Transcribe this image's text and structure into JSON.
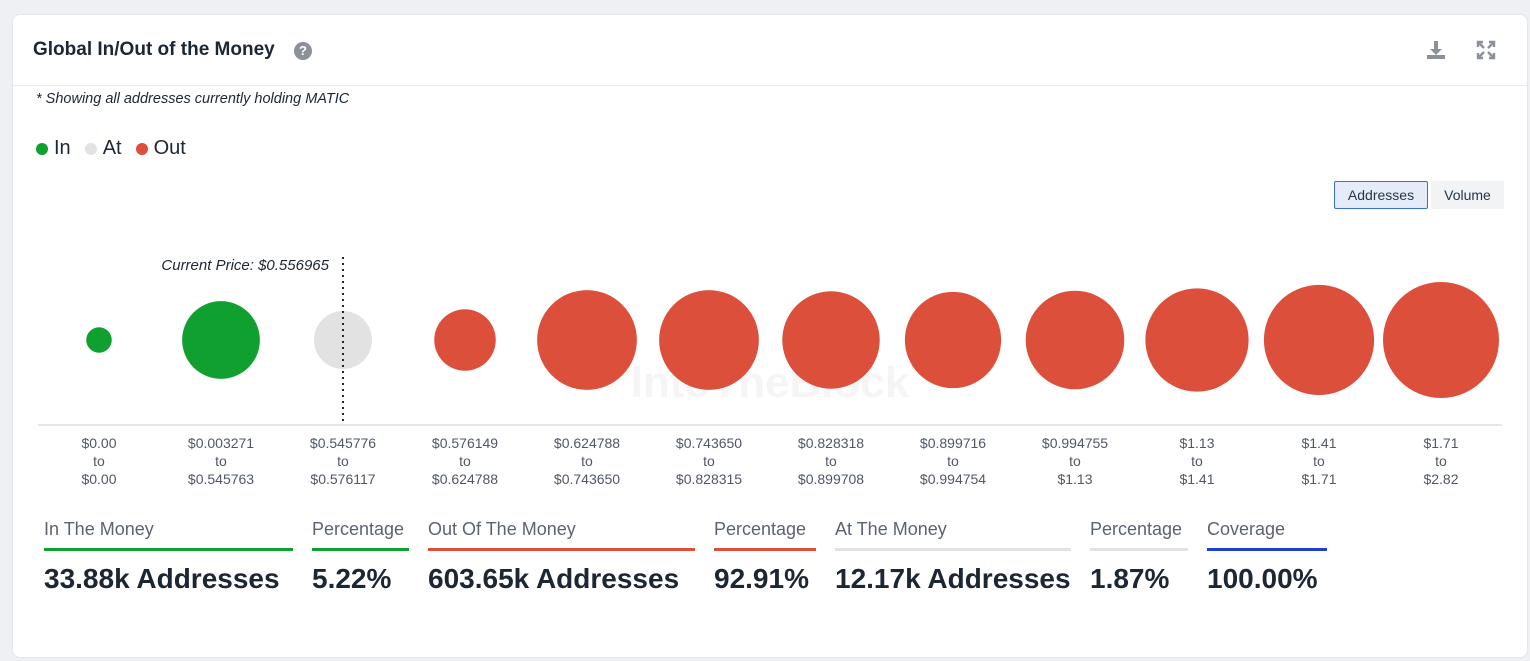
{
  "header": {
    "title": "Global In/Out of the Money",
    "help_icon": "question-circle-icon",
    "download_icon": "download-icon",
    "expand_icon": "expand-icon"
  },
  "note": "* Showing all addresses currently holding MATIC",
  "legend": [
    {
      "label": "In",
      "color": "#10a030"
    },
    {
      "label": "At",
      "color": "#e2e2e2"
    },
    {
      "label": "Out",
      "color": "#dc4f3b"
    }
  ],
  "toggles": {
    "addresses": "Addresses",
    "volume": "Volume",
    "selected": "addresses"
  },
  "watermark": "IntoTheBlock",
  "chart_data": {
    "type": "bubble",
    "current_price_label": "Current Price: $0.556965",
    "current_price_after_index": 2,
    "categories": [
      {
        "from": "$0.00",
        "to_word": "to",
        "to": "$0.00",
        "status": "in",
        "relative_size": 0.22
      },
      {
        "from": "$0.003271",
        "to_word": "to",
        "to": "$0.545763",
        "status": "in",
        "relative_size": 0.67
      },
      {
        "from": "$0.545776",
        "to_word": "to",
        "to": "$0.576117",
        "status": "at",
        "relative_size": 0.5
      },
      {
        "from": "$0.576149",
        "to_word": "to",
        "to": "$0.624788",
        "status": "out",
        "relative_size": 0.53
      },
      {
        "from": "$0.624788",
        "to_word": "to",
        "to": "$0.743650",
        "status": "out",
        "relative_size": 0.86
      },
      {
        "from": "$0.743650",
        "to_word": "to",
        "to": "$0.828315",
        "status": "out",
        "relative_size": 0.86
      },
      {
        "from": "$0.828318",
        "to_word": "to",
        "to": "$0.899708",
        "status": "out",
        "relative_size": 0.84
      },
      {
        "from": "$0.899716",
        "to_word": "to",
        "to": "$0.994754",
        "status": "out",
        "relative_size": 0.83
      },
      {
        "from": "$0.994755",
        "to_word": "to",
        "to": "$1.13",
        "status": "out",
        "relative_size": 0.85
      },
      {
        "from": "$1.13",
        "to_word": "to",
        "to": "$1.41",
        "status": "out",
        "relative_size": 0.89
      },
      {
        "from": "$1.41",
        "to_word": "to",
        "to": "$1.71",
        "status": "out",
        "relative_size": 0.95
      },
      {
        "from": "$1.71",
        "to_word": "to",
        "to": "$2.82",
        "status": "out",
        "relative_size": 1.0
      }
    ],
    "colors": {
      "in": "#10a030",
      "at": "#e2e2e2",
      "out": "#dc4f3b"
    }
  },
  "stats": [
    {
      "label": "In The Money",
      "value": "33.88k Addresses",
      "color": "#10a030"
    },
    {
      "label": "Percentage",
      "value": "5.22%",
      "color": "#10a030"
    },
    {
      "label": "Out Of The Money",
      "value": "603.65k Addresses",
      "color": "#dc4f3b"
    },
    {
      "label": "Percentage",
      "value": "92.91%",
      "color": "#dc4f3b"
    },
    {
      "label": "At The Money",
      "value": "12.17k Addresses",
      "color": "#e2e2e2"
    },
    {
      "label": "Percentage",
      "value": "1.87%",
      "color": "#e2e2e2"
    },
    {
      "label": "Coverage",
      "value": "100.00%",
      "color": "#1e3fd6"
    }
  ]
}
